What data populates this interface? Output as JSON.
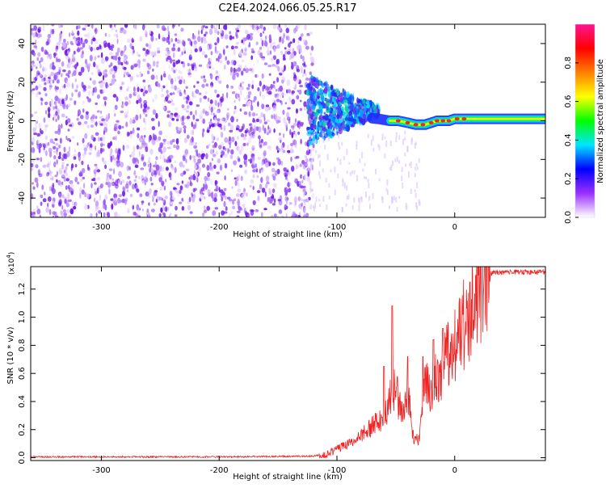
{
  "title": "C2E4.2024.066.05.25.R17",
  "colors": {
    "colorbar": [
      "#ffffff",
      "#9b30ff",
      "#0000ff",
      "#00e5ff",
      "#00ff00",
      "#ffff00",
      "#ff8000",
      "#ff0000",
      "#ff1493"
    ],
    "snr_line": "#ee2222",
    "axis": "#000000"
  },
  "chart_data": [
    {
      "type": "heatmap",
      "xlabel": "Height of straight line (km)",
      "ylabel": "Frequency (Hz)",
      "xlim": [
        -360,
        77
      ],
      "ylim": [
        -50,
        50
      ],
      "x_ticks": [
        "-300",
        "-200",
        "-100",
        "0"
      ],
      "x_tick_values": [
        -300,
        -200,
        -100,
        0
      ],
      "y_ticks": [
        "-40",
        "-20",
        "0",
        "20",
        "40"
      ],
      "y_tick_values": [
        -40,
        -20,
        0,
        20,
        40
      ],
      "colorbar": {
        "label": "Normalized spectral amplitude",
        "range": [
          0,
          1
        ],
        "ticks": [
          "0.0",
          "0.2",
          "0.4",
          "0.6",
          "0.8"
        ],
        "tick_values": [
          0,
          0.2,
          0.4,
          0.6,
          0.8
        ]
      },
      "regions": [
        {
          "x_range": [
            -360,
            -125
          ],
          "freq_range": [
            -50,
            50
          ],
          "amplitude": 0.15,
          "description_color": "purple noise"
        },
        {
          "x_range": [
            -125,
            -70
          ],
          "freq_range": [
            -15,
            20
          ],
          "amplitude": 0.35
        },
        {
          "x_range": [
            -70,
            -20
          ],
          "freq_center": 0,
          "amplitude": 0.5
        },
        {
          "x_range": [
            -20,
            77
          ],
          "freq_center": 1,
          "amplitude": 0.55
        }
      ],
      "ridge_x": [
        -125,
        -110,
        -95,
        -80,
        -65,
        -55,
        -48,
        -40,
        -33,
        -25,
        -15,
        -5,
        0,
        10,
        30,
        50,
        77
      ],
      "ridge_freq": [
        7,
        5,
        3,
        2,
        1,
        0,
        0,
        -1,
        -2,
        -2,
        0,
        0,
        1,
        1,
        1,
        1,
        1
      ]
    },
    {
      "type": "line",
      "xlabel": "Height of straight line (km)",
      "ylabel": "SNR (10 * v/v)",
      "y_multiplier": "(x10",
      "y_multiplier_exp": "4",
      "y_multiplier_close": ")",
      "xlim": [
        -360,
        77
      ],
      "ylim": [
        -0.02,
        1.36
      ],
      "x_ticks": [
        "-300",
        "-200",
        "-100",
        "0"
      ],
      "x_tick_values": [
        -300,
        -200,
        -100,
        0
      ],
      "y_ticks": [
        "0.0",
        "0.2",
        "0.4",
        "0.6",
        "0.8",
        "1.0",
        "1.2"
      ],
      "y_tick_values": [
        0,
        0.2,
        0.4,
        0.6,
        0.8,
        1.0,
        1.2
      ],
      "series": [
        {
          "x": [
            -360,
            -300,
            -200,
            -120,
            -110,
            -100,
            -90,
            -80,
            -70,
            -60,
            -55,
            -50,
            -45,
            -40,
            -35,
            -30,
            -25,
            -20,
            -15,
            -10,
            -5,
            0,
            5,
            10,
            15,
            20,
            25,
            30,
            40,
            50,
            60,
            77
          ],
          "values": [
            0.0,
            0.0,
            0.0,
            0.005,
            0.02,
            0.06,
            0.1,
            0.15,
            0.22,
            0.3,
            0.42,
            0.5,
            0.3,
            0.45,
            0.15,
            0.12,
            0.55,
            0.45,
            0.6,
            0.62,
            0.75,
            0.8,
            0.9,
            1.0,
            1.1,
            1.22,
            1.3,
            1.31,
            1.32,
            1.32,
            1.32,
            1.32
          ],
          "peaks": [
            {
              "x": -60,
              "y": 0.65
            },
            {
              "x": -53,
              "y": 1.08
            },
            {
              "x": -40,
              "y": 0.72
            },
            {
              "x": -27,
              "y": 0.72
            },
            {
              "x": -18,
              "y": 0.84
            },
            {
              "x": -10,
              "y": 0.92
            },
            {
              "x": 7,
              "y": 1.02
            },
            {
              "x": 13,
              "y": 1.25
            }
          ]
        }
      ]
    }
  ]
}
